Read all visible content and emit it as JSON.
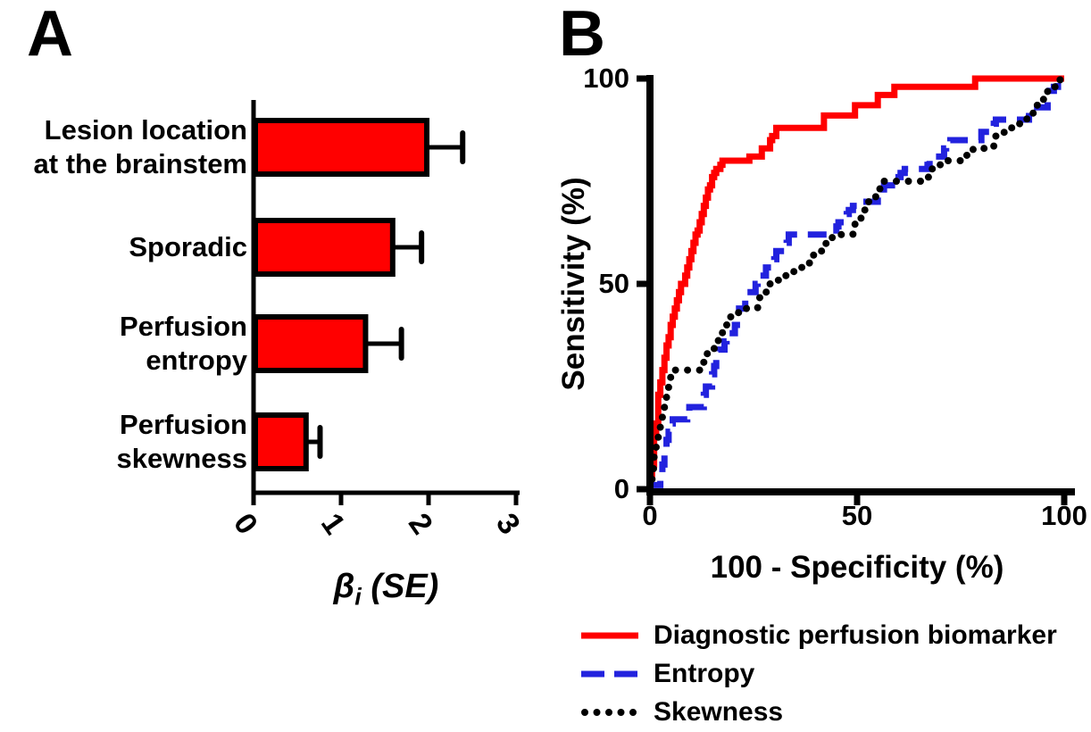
{
  "figure_background": "#ffffff",
  "chart_data": [
    {
      "panel": "A",
      "type": "bar",
      "orientation": "horizontal",
      "categories": [
        "Lesion location\nat the brainstem",
        "Sporadic",
        "Perfusion\nentropy",
        "Perfusion\nskewness"
      ],
      "values": [
        1.98,
        1.59,
        1.28,
        0.6
      ],
      "errors_se": [
        0.41,
        0.33,
        0.41,
        0.16
      ],
      "xlabel": "βi (SE)",
      "xlabel_parts": {
        "symbol": "β",
        "subscript": "i",
        "rest": " (SE)"
      },
      "xticks": [
        0,
        1,
        2,
        3
      ],
      "xlim": [
        0,
        3
      ],
      "bar_color": "#FF0000",
      "bar_outline": "#000000",
      "grid": false
    },
    {
      "panel": "B",
      "type": "line",
      "subtype": "roc-curves",
      "xlabel": "100 - Specificity (%)",
      "ylabel": "Sensitivity (%)",
      "xticks": [
        0,
        50,
        100
      ],
      "yticks": [
        0,
        50,
        100
      ],
      "xlim": [
        0,
        100
      ],
      "ylim": [
        0,
        100
      ],
      "grid": false,
      "legend_position": "below-right",
      "series": [
        {
          "name": "Diagnostic perfusion biomarker",
          "color": "#FF0000",
          "line_style": "solid",
          "points": [
            [
              0,
              0
            ],
            [
              0.5,
              3
            ],
            [
              1,
              6
            ],
            [
              1,
              10
            ],
            [
              1.5,
              13
            ],
            [
              2,
              16
            ],
            [
              2,
              20
            ],
            [
              2.5,
              23
            ],
            [
              3,
              26
            ],
            [
              3.5,
              29
            ],
            [
              4,
              32
            ],
            [
              4.5,
              35
            ],
            [
              5,
              37
            ],
            [
              5.5,
              40
            ],
            [
              6,
              42
            ],
            [
              6.5,
              44
            ],
            [
              7,
              46
            ],
            [
              7.5,
              48
            ],
            [
              8.5,
              50
            ],
            [
              9,
              52
            ],
            [
              9.5,
              54
            ],
            [
              10,
              56
            ],
            [
              10.5,
              58
            ],
            [
              11,
              60
            ],
            [
              11.5,
              62
            ],
            [
              12,
              63
            ],
            [
              12.5,
              65
            ],
            [
              13,
              67
            ],
            [
              13.5,
              69
            ],
            [
              14,
              71
            ],
            [
              14.5,
              73
            ],
            [
              15,
              74
            ],
            [
              15.5,
              76
            ],
            [
              16,
              77
            ],
            [
              17,
              78
            ],
            [
              17.5,
              79
            ],
            [
              18.5,
              80
            ],
            [
              24,
              80
            ],
            [
              24.5,
              81
            ],
            [
              27,
              81
            ],
            [
              27.5,
              83
            ],
            [
              29,
              83
            ],
            [
              29.5,
              85
            ],
            [
              30.5,
              86
            ],
            [
              31,
              88
            ],
            [
              42,
              88
            ],
            [
              42.5,
              91
            ],
            [
              49.5,
              91
            ],
            [
              50,
              93.5
            ],
            [
              55,
              93.5
            ],
            [
              55.5,
              96
            ],
            [
              59,
              96
            ],
            [
              59.5,
              98
            ],
            [
              78.5,
              98
            ],
            [
              79,
              100
            ],
            [
              100,
              100
            ]
          ]
        },
        {
          "name": "Entropy",
          "color": "#2222DE",
          "line_style": "dashed",
          "points": [
            [
              0,
              0
            ],
            [
              2.5,
              1
            ],
            [
              3,
              3
            ],
            [
              3.5,
              6
            ],
            [
              4,
              9
            ],
            [
              4.5,
              12
            ],
            [
              5,
              14
            ],
            [
              5.5,
              16
            ],
            [
              6,
              17
            ],
            [
              9,
              17
            ],
            [
              9.5,
              19
            ],
            [
              10,
              20
            ],
            [
              13,
              20
            ],
            [
              13.5,
              23
            ],
            [
              14,
              25
            ],
            [
              15,
              25
            ],
            [
              15.5,
              28
            ],
            [
              16,
              30
            ],
            [
              16.5,
              32
            ],
            [
              17,
              34
            ],
            [
              18,
              34
            ],
            [
              18.5,
              36
            ],
            [
              19,
              38
            ],
            [
              20.5,
              38
            ],
            [
              21,
              40
            ],
            [
              21.5,
              42
            ],
            [
              22,
              44
            ],
            [
              23,
              44
            ],
            [
              23.5,
              46
            ],
            [
              24,
              48
            ],
            [
              25.5,
              48
            ],
            [
              26,
              50
            ],
            [
              26.5,
              52
            ],
            [
              28,
              52
            ],
            [
              28.5,
              54
            ],
            [
              30,
              54
            ],
            [
              30.5,
              56
            ],
            [
              31,
              58
            ],
            [
              33,
              58
            ],
            [
              33.5,
              60
            ],
            [
              34.5,
              62
            ],
            [
              45,
              62
            ],
            [
              45.5,
              64
            ],
            [
              46,
              65
            ],
            [
              47.5,
              65
            ],
            [
              48,
              67
            ],
            [
              49,
              68
            ],
            [
              50,
              69
            ],
            [
              52,
              70
            ],
            [
              55,
              70
            ],
            [
              55.5,
              72
            ],
            [
              56.5,
              73
            ],
            [
              58,
              74
            ],
            [
              60,
              74
            ],
            [
              60.5,
              76
            ],
            [
              61.5,
              77
            ],
            [
              63,
              78
            ],
            [
              67,
              78
            ],
            [
              67.5,
              79
            ],
            [
              68,
              81
            ],
            [
              71,
              81
            ],
            [
              71.5,
              83
            ],
            [
              72.5,
              84
            ],
            [
              74.5,
              85
            ],
            [
              80,
              85
            ],
            [
              80.5,
              87
            ],
            [
              83,
              87
            ],
            [
              83.5,
              89
            ],
            [
              86,
              90
            ],
            [
              91.5,
              90
            ],
            [
              92,
              92
            ],
            [
              93.5,
              93
            ],
            [
              96,
              93
            ],
            [
              96.5,
              95
            ],
            [
              97.5,
              97
            ],
            [
              98.5,
              98
            ],
            [
              100,
              100
            ]
          ]
        },
        {
          "name": "Skewness",
          "color": "#000000",
          "line_style": "dotted",
          "points": [
            [
              0,
              0
            ],
            [
              0.5,
              2
            ],
            [
              1,
              5
            ],
            [
              1.5,
              8
            ],
            [
              2,
              11
            ],
            [
              2.5,
              14
            ],
            [
              3,
              16
            ],
            [
              3.5,
              19
            ],
            [
              4,
              22
            ],
            [
              4.5,
              24
            ],
            [
              5,
              26
            ],
            [
              5.5,
              28
            ],
            [
              6.5,
              29
            ],
            [
              13,
              29
            ],
            [
              13.5,
              31
            ],
            [
              14.5,
              33
            ],
            [
              15.5,
              34
            ],
            [
              16.5,
              36
            ],
            [
              17.5,
              37
            ],
            [
              18.5,
              39
            ],
            [
              19.5,
              40
            ],
            [
              20.5,
              42
            ],
            [
              21.5,
              43
            ],
            [
              22.5,
              44
            ],
            [
              26,
              44
            ],
            [
              26.5,
              45
            ],
            [
              28,
              47
            ],
            [
              29,
              48
            ],
            [
              31,
              50
            ],
            [
              33,
              52
            ],
            [
              35.5,
              53
            ],
            [
              37,
              54
            ],
            [
              38.5,
              55
            ],
            [
              40.5,
              57
            ],
            [
              42.5,
              58
            ],
            [
              44,
              60
            ],
            [
              45,
              62
            ],
            [
              49,
              62
            ],
            [
              49.5,
              63
            ],
            [
              50.5,
              65
            ],
            [
              51.5,
              66
            ],
            [
              52.5,
              68
            ],
            [
              53.5,
              70
            ],
            [
              54.5,
              71
            ],
            [
              55.5,
              73
            ],
            [
              56.5,
              75
            ],
            [
              67,
              75
            ],
            [
              67.5,
              76
            ],
            [
              69,
              78
            ],
            [
              70.5,
              79
            ],
            [
              71.5,
              80
            ],
            [
              76,
              80
            ],
            [
              76.5,
              81
            ],
            [
              78,
              82
            ],
            [
              78.5,
              83
            ],
            [
              83,
              83
            ],
            [
              83.5,
              85
            ],
            [
              85.5,
              86
            ],
            [
              87,
              87
            ],
            [
              88.5,
              88
            ],
            [
              90,
              89
            ],
            [
              91,
              90
            ],
            [
              92.5,
              91
            ],
            [
              93.5,
              92
            ],
            [
              95,
              94
            ],
            [
              96,
              95
            ],
            [
              97,
              97
            ],
            [
              98,
              98
            ],
            [
              99,
              99
            ],
            [
              100,
              100
            ]
          ]
        }
      ]
    }
  ]
}
